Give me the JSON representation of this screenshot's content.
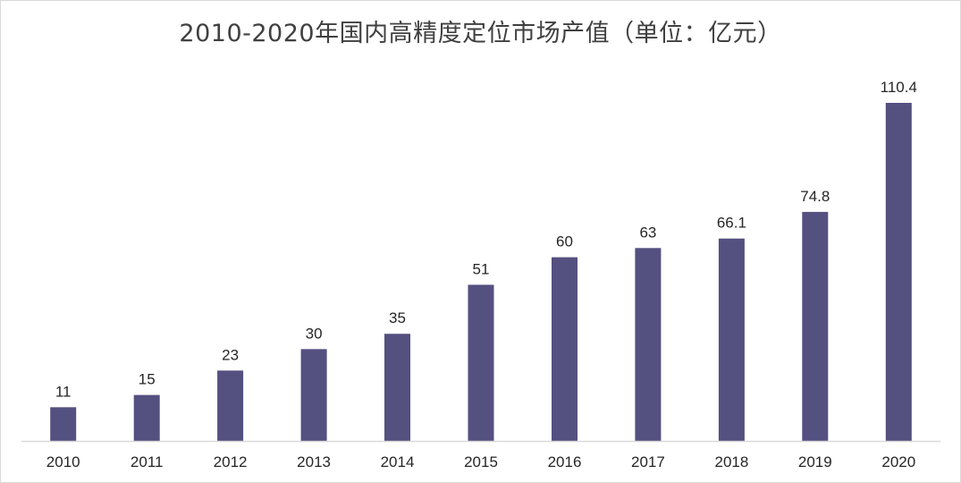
{
  "chart_data": {
    "type": "bar",
    "title": "2010-2020年国内高精度定位市场产值（单位：亿元）",
    "xlabel": "",
    "ylabel": "",
    "categories": [
      "2010",
      "2011",
      "2012",
      "2013",
      "2014",
      "2015",
      "2016",
      "2017",
      "2018",
      "2019",
      "2020"
    ],
    "series": [
      {
        "values": [
          11,
          15,
          23,
          30,
          35,
          51,
          60,
          63,
          66.1,
          74.8,
          110.4
        ]
      }
    ],
    "data_labels": [
      "11",
      "15",
      "23",
      "30",
      "35",
      "51",
      "60",
      "63",
      "66.1",
      "74.8",
      "110.4"
    ],
    "ylim": [
      0,
      110.4
    ],
    "grid": false,
    "legend": "none",
    "colors": {
      "bar": "#545080",
      "axis": "#d9d9d9",
      "text": "#262626",
      "title": "#404040"
    }
  }
}
